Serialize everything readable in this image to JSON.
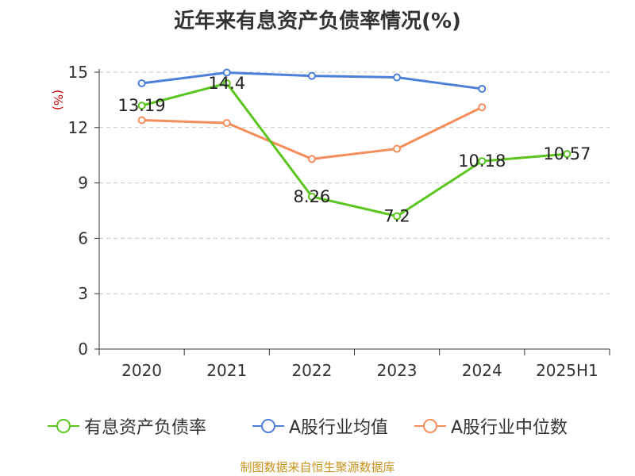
{
  "title": "近年来有息资产负债率情况(%)",
  "source": "制图数据来自恒生聚源数据库",
  "chart_data": {
    "type": "line",
    "title": "近年来有息资产负债率情况(%)",
    "ylabel": "(%)",
    "xlabel": "",
    "categories": [
      "2020",
      "2021",
      "2022",
      "2023",
      "2024",
      "2025H1"
    ],
    "ylim": [
      0,
      15
    ],
    "yticks": [
      0,
      3,
      6,
      9,
      12,
      15
    ],
    "grid": true,
    "legend_position": "bottom",
    "series": [
      {
        "name": "有息资产负债率",
        "color": "#5cc41e",
        "values": [
          13.19,
          14.4,
          8.26,
          7.2,
          10.18,
          10.57
        ],
        "labels": [
          "13.19",
          "14.4",
          "8.26",
          "7.2",
          "10.18",
          "10.57"
        ]
      },
      {
        "name": "A股行业均值",
        "color": "#4e7fd8",
        "values": [
          14.4,
          14.98,
          14.8,
          14.72,
          14.1,
          null
        ]
      },
      {
        "name": "A股行业中位数",
        "color": "#f58d5a",
        "values": [
          12.4,
          12.25,
          10.3,
          10.85,
          13.1,
          null
        ]
      }
    ]
  }
}
